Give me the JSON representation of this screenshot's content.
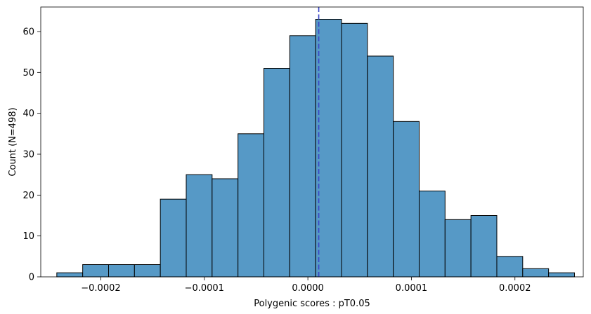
{
  "chart_data": {
    "type": "histogram",
    "title": "",
    "xlabel": "Polygenic scores : pT0.05",
    "ylabel": "Count (N=498)",
    "xlim": [
      -0.000258,
      0.000266
    ],
    "ylim": [
      0,
      66
    ],
    "bar_color": "#5699c6",
    "edge_color": "#000000",
    "mean_line": {
      "x": 1.05e-05,
      "color": "#3a45c8",
      "style": "dashed"
    },
    "bins": [
      {
        "x0": -0.0002425,
        "x1": -0.0002175,
        "count": 1
      },
      {
        "x0": -0.0002175,
        "x1": -0.0001925,
        "count": 3
      },
      {
        "x0": -0.0001925,
        "x1": -0.0001675,
        "count": 3
      },
      {
        "x0": -0.0001675,
        "x1": -0.0001425,
        "count": 3
      },
      {
        "x0": -0.0001425,
        "x1": -0.0001175,
        "count": 19
      },
      {
        "x0": -0.0001175,
        "x1": -9.25e-05,
        "count": 25
      },
      {
        "x0": -9.25e-05,
        "x1": -6.75e-05,
        "count": 24
      },
      {
        "x0": -6.75e-05,
        "x1": -4.25e-05,
        "count": 35
      },
      {
        "x0": -4.25e-05,
        "x1": -1.75e-05,
        "count": 51
      },
      {
        "x0": -1.75e-05,
        "x1": 7.5e-06,
        "count": 59
      },
      {
        "x0": 7.5e-06,
        "x1": 3.25e-05,
        "count": 63
      },
      {
        "x0": 3.25e-05,
        "x1": 5.75e-05,
        "count": 62
      },
      {
        "x0": 5.75e-05,
        "x1": 8.25e-05,
        "count": 54
      },
      {
        "x0": 8.25e-05,
        "x1": 0.0001075,
        "count": 38
      },
      {
        "x0": 0.0001075,
        "x1": 0.0001325,
        "count": 21
      },
      {
        "x0": 0.0001325,
        "x1": 0.0001575,
        "count": 14
      },
      {
        "x0": 0.0001575,
        "x1": 0.0001825,
        "count": 15
      },
      {
        "x0": 0.0001825,
        "x1": 0.0002075,
        "count": 5
      },
      {
        "x0": 0.0002075,
        "x1": 0.0002325,
        "count": 2
      },
      {
        "x0": 0.0002325,
        "x1": 0.0002575,
        "count": 1
      }
    ],
    "x_ticks": [
      {
        "value": -0.0002,
        "label": "−0.0002"
      },
      {
        "value": -0.0001,
        "label": "−0.0001"
      },
      {
        "value": 0,
        "label": "0.0000"
      },
      {
        "value": 0.0001,
        "label": "0.0001"
      },
      {
        "value": 0.0002,
        "label": "0.0002"
      }
    ],
    "y_ticks": [
      {
        "value": 0,
        "label": "0"
      },
      {
        "value": 10,
        "label": "10"
      },
      {
        "value": 20,
        "label": "20"
      },
      {
        "value": 30,
        "label": "30"
      },
      {
        "value": 40,
        "label": "40"
      },
      {
        "value": 50,
        "label": "50"
      },
      {
        "value": 60,
        "label": "60"
      }
    ]
  }
}
